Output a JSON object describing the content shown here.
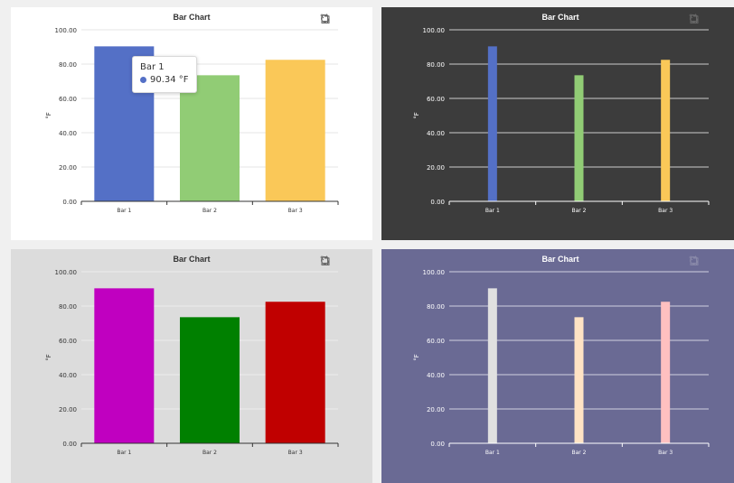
{
  "chart_data": [
    {
      "type": "bar",
      "title": "Bar Chart",
      "ylabel": "°F",
      "ylim": [
        0,
        100
      ],
      "yticks": [
        "0.00",
        "20.00",
        "40.00",
        "60.00",
        "80.00",
        "100.00"
      ],
      "categories": [
        "Bar 1",
        "Bar 2",
        "Bar 3"
      ],
      "values": [
        90.34,
        73.5,
        82.5
      ],
      "colors": [
        "#5470c6",
        "#91cc75",
        "#fac858"
      ],
      "theme": {
        "background": "#ffffff",
        "text": "#333333",
        "axis": "#333333",
        "grid": "#e6e6e6"
      }
    },
    {
      "type": "bar",
      "title": "Bar Chart",
      "ylabel": "°F",
      "ylim": [
        0,
        100
      ],
      "yticks": [
        "0.00",
        "20.00",
        "40.00",
        "60.00",
        "80.00",
        "100.00"
      ],
      "categories": [
        "Bar 1",
        "Bar 2",
        "Bar 3"
      ],
      "values": [
        90.34,
        73.5,
        82.5
      ],
      "colors": [
        "#5470c6",
        "#91cc75",
        "#fac858"
      ],
      "theme": {
        "background": "#3c3c3c",
        "text": "#ffffff",
        "axis": "#ffffff",
        "grid": "#cccccc"
      }
    },
    {
      "type": "bar",
      "title": "Bar Chart",
      "ylabel": "°F",
      "ylim": [
        0,
        100
      ],
      "yticks": [
        "0.00",
        "20.00",
        "40.00",
        "60.00",
        "80.00",
        "100.00"
      ],
      "categories": [
        "Bar 1",
        "Bar 2",
        "Bar 3"
      ],
      "values": [
        90.34,
        73.5,
        82.5
      ],
      "colors": [
        "#c000c0",
        "#008000",
        "#c00000"
      ],
      "theme": {
        "background": "#dcdcdc",
        "text": "#333333",
        "axis": "#333333",
        "grid": "#ececec"
      }
    },
    {
      "type": "bar",
      "title": "Bar Chart",
      "ylabel": "°F",
      "ylim": [
        0,
        100
      ],
      "yticks": [
        "0.00",
        "20.00",
        "40.00",
        "60.00",
        "80.00",
        "100.00"
      ],
      "categories": [
        "Bar 1",
        "Bar 2",
        "Bar 3"
      ],
      "values": [
        90.34,
        73.5,
        82.5
      ],
      "colors": [
        "#e0e0e0",
        "#ffe3c4",
        "#ffc0c0"
      ],
      "theme": {
        "background": "#6a6a94",
        "text": "#ffffff",
        "axis": "#ffffff",
        "grid": "#d0d0e0"
      }
    }
  ],
  "tooltip": {
    "title": "Bar 1",
    "value_text": "90.34 °F",
    "color": "#5470c6"
  },
  "toolbox_icons": [
    "zoom-select-icon",
    "zoom-reset-icon",
    "restore-icon"
  ]
}
